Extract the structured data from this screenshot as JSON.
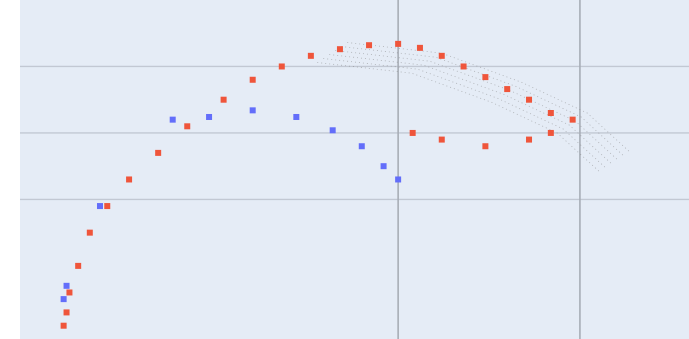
{
  "chart_data": {
    "type": "scatter",
    "title": "",
    "xlabel": "",
    "ylabel": "",
    "xlim": [
      -2.6,
      2.0
    ],
    "ylim": [
      -1.55,
      1.0
    ],
    "grid": true,
    "x_gridlines": [
      0,
      1.25
    ],
    "y_gridlines": [
      0.5,
      0,
      -0.5
    ],
    "legend": "none",
    "colors": {
      "background": "#e5ecf6",
      "gridline": "#c2c8d3",
      "gridline_major": "#a7adb6",
      "series_a": "#ef553b",
      "series_b": "#636efa",
      "trace": "#7f7f7f"
    },
    "series": [
      {
        "color": "#ef553b",
        "marker": "square",
        "points": [
          [
            -2.3,
            -1.45
          ],
          [
            -2.28,
            -1.35
          ],
          [
            -2.26,
            -1.2
          ],
          [
            -2.2,
            -1.0
          ],
          [
            -2.12,
            -0.75
          ],
          [
            -2.0,
            -0.55
          ],
          [
            -1.85,
            -0.35
          ],
          [
            -1.65,
            -0.15
          ],
          [
            -1.45,
            0.05
          ],
          [
            -1.2,
            0.25
          ],
          [
            -1.0,
            0.4
          ],
          [
            -0.8,
            0.5
          ],
          [
            -0.6,
            0.58
          ],
          [
            -0.4,
            0.63
          ],
          [
            -0.2,
            0.66
          ],
          [
            0.0,
            0.67
          ],
          [
            0.15,
            0.64
          ],
          [
            0.3,
            0.58
          ],
          [
            0.45,
            0.5
          ],
          [
            0.6,
            0.42
          ],
          [
            0.75,
            0.33
          ],
          [
            0.9,
            0.25
          ],
          [
            1.05,
            0.15
          ],
          [
            1.2,
            0.1
          ],
          [
            0.1,
            0.0
          ],
          [
            0.3,
            -0.05
          ],
          [
            0.6,
            -0.1
          ],
          [
            0.9,
            -0.05
          ],
          [
            1.05,
            0.0
          ]
        ]
      },
      {
        "color": "#636efa",
        "marker": "square",
        "points": [
          [
            -2.3,
            -1.25
          ],
          [
            -2.28,
            -1.15
          ],
          [
            -2.05,
            -0.55
          ],
          [
            -1.55,
            0.1
          ],
          [
            -1.3,
            0.12
          ],
          [
            -1.0,
            0.17
          ],
          [
            -0.7,
            0.12
          ],
          [
            -0.45,
            0.02
          ],
          [
            -0.25,
            -0.1
          ],
          [
            -0.1,
            -0.25
          ],
          [
            0.0,
            -0.35
          ]
        ]
      }
    ],
    "trace": {
      "color": "#7f7f7f",
      "style": "dotted",
      "points": [
        [
          -0.35,
          0.68
        ],
        [
          0.3,
          0.6
        ],
        [
          0.85,
          0.38
        ],
        [
          1.3,
          0.15
        ],
        [
          1.6,
          -0.15
        ]
      ]
    }
  }
}
